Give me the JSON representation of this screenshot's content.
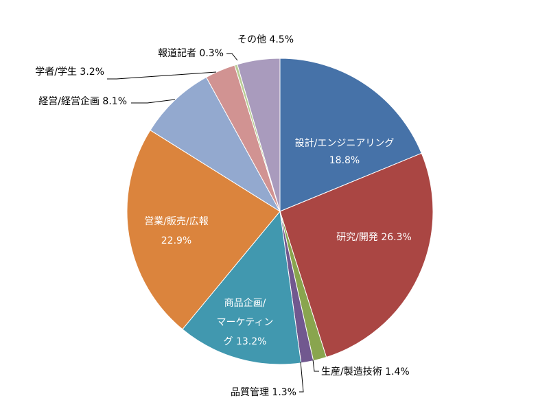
{
  "chart_data": {
    "type": "pie",
    "title": "",
    "start_angle_deg": 0,
    "direction": "clockwise",
    "slices": [
      {
        "name": "設計/エンジニアリング",
        "value": 18.8,
        "label_lines": [
          "設計/エンジニアリング",
          "18.8%"
        ],
        "color": "#4672A8",
        "label_pos": "inside"
      },
      {
        "name": "研究/開発",
        "value": 26.3,
        "label_lines": [
          "研究/開発 26.3%"
        ],
        "color": "#AA4643",
        "label_pos": "inside"
      },
      {
        "name": "生産/製造技術",
        "value": 1.4,
        "label_lines": [
          "生産/製造技術 1.4%"
        ],
        "color": "#89A54E",
        "label_pos": "outside"
      },
      {
        "name": "品質管理",
        "value": 1.3,
        "label_lines": [
          "品質管理 1.3%"
        ],
        "color": "#71588F",
        "label_pos": "outside"
      },
      {
        "name": "商品企画/マーケティング",
        "value": 13.2,
        "label_lines": [
          "商品企画/",
          "マーケティン",
          "グ 13.2%"
        ],
        "color": "#4198AF",
        "label_pos": "inside"
      },
      {
        "name": "営業/販売/広報",
        "value": 22.9,
        "label_lines": [
          "営業/販売/広報",
          "22.9%"
        ],
        "color": "#DB843D",
        "label_pos": "inside"
      },
      {
        "name": "経営/経営企画",
        "value": 8.1,
        "label_lines": [
          "経営/経営企画 8.1%"
        ],
        "color": "#93A9CF",
        "label_pos": "outside"
      },
      {
        "name": "学者/学生",
        "value": 3.2,
        "label_lines": [
          "学者/学生  3.2%"
        ],
        "color": "#D19392",
        "label_pos": "outside"
      },
      {
        "name": "報道記者",
        "value": 0.3,
        "label_lines": [
          "報道記者 0.3%"
        ],
        "color": "#B9CD96",
        "label_pos": "outside"
      },
      {
        "name": "その他",
        "value": 4.5,
        "label_lines": [
          "その他 4.5%"
        ],
        "color": "#A99BBD",
        "label_pos": "outside"
      }
    ]
  }
}
